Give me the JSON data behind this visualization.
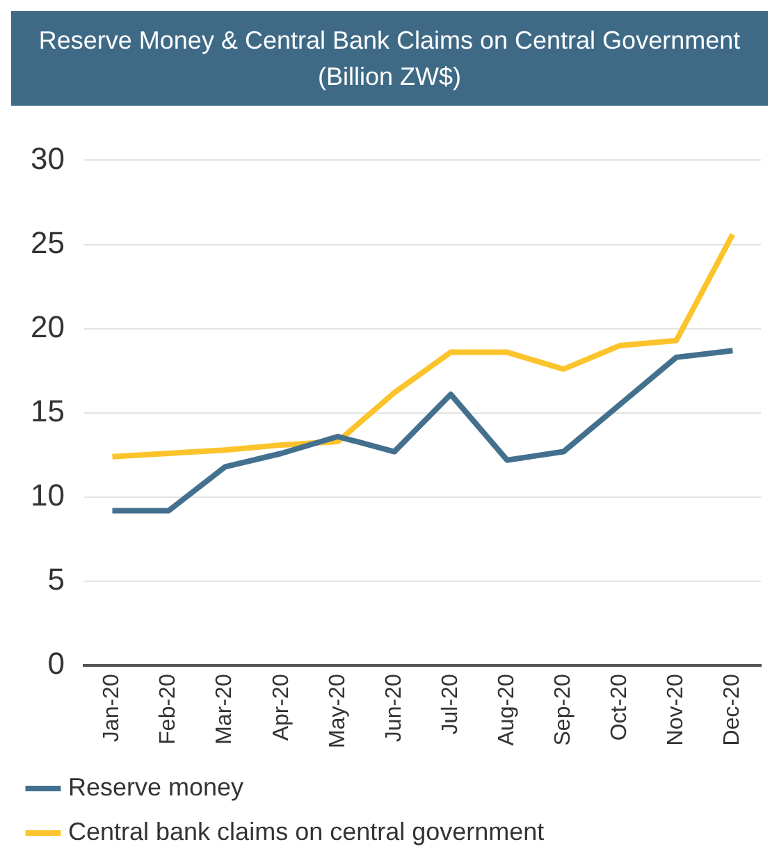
{
  "chart_data": {
    "type": "line",
    "title": "Reserve Money & Central Bank Claims on Central Government",
    "subtitle": "(Billion ZW$)",
    "categories": [
      "Jan-20",
      "Feb-20",
      "Mar-20",
      "Apr-20",
      "May-20",
      "Jun-20",
      "Jul-20",
      "Aug-20",
      "Sep-20",
      "Oct-20",
      "Nov-20",
      "Dec-20"
    ],
    "series": [
      {
        "name": "Reserve money",
        "color": "#44708f",
        "values": [
          9.2,
          9.2,
          11.8,
          12.6,
          13.6,
          12.7,
          16.1,
          12.2,
          12.7,
          15.5,
          18.3,
          18.7
        ]
      },
      {
        "name": "Central bank claims on central government",
        "color": "#fcc42c",
        "values": [
          12.4,
          12.6,
          12.8,
          13.1,
          13.3,
          16.2,
          18.6,
          18.6,
          17.6,
          19.0,
          19.3,
          25.6
        ]
      }
    ],
    "ylim": [
      0,
      30
    ],
    "yticks": [
      0,
      5,
      10,
      15,
      20,
      25,
      30
    ],
    "grid": "y",
    "legend": "bottom",
    "marker": "none",
    "line_style": "solid"
  }
}
